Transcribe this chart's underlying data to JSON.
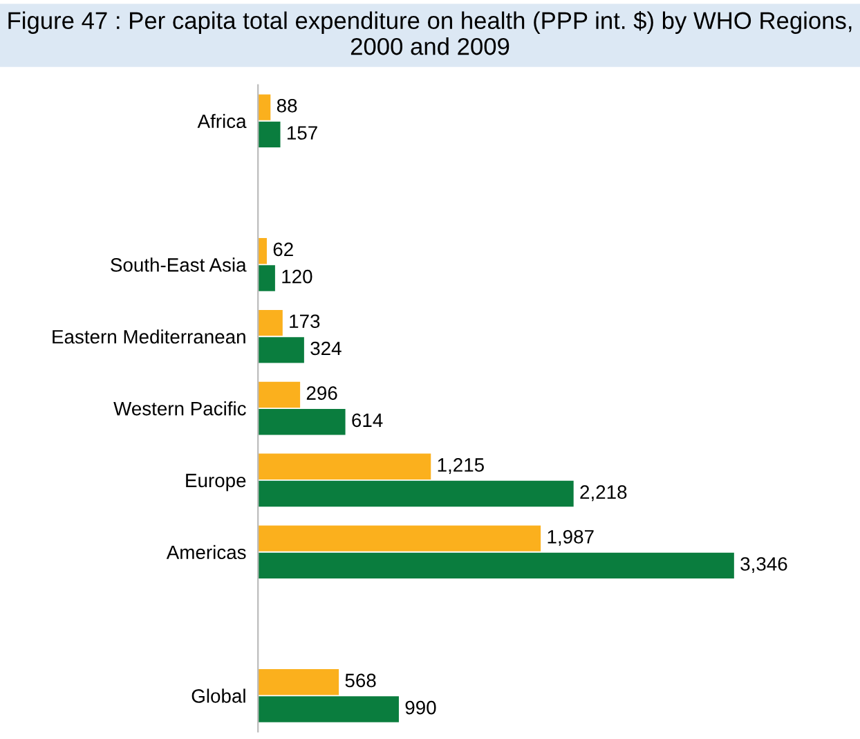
{
  "chart_data": {
    "type": "bar",
    "orientation": "horizontal",
    "title": "Figure 47 : Per capita total expenditure on health (PPP int. $) by WHO Regions, 2000 and 2009",
    "categories": [
      "Africa",
      null,
      "South-East Asia",
      "Eastern Mediterranean",
      "Western Pacific",
      "Europe",
      "Americas",
      null,
      "Global"
    ],
    "series": [
      {
        "color": "#fbb01d",
        "values": [
          88,
          null,
          62,
          173,
          296,
          1215,
          1987,
          null,
          568
        ],
        "value_labels": [
          "88",
          null,
          "62",
          "173",
          "296",
          "1,215",
          "1,987",
          null,
          "568"
        ]
      },
      {
        "color": "#0a7d3e",
        "values": [
          157,
          null,
          120,
          324,
          614,
          2218,
          3346,
          null,
          990
        ],
        "value_labels": [
          "157",
          null,
          "120",
          "324",
          "614",
          "2,218",
          "3,346",
          null,
          "990"
        ]
      }
    ],
    "tick_labels": "y",
    "grid": false,
    "legend": false
  }
}
